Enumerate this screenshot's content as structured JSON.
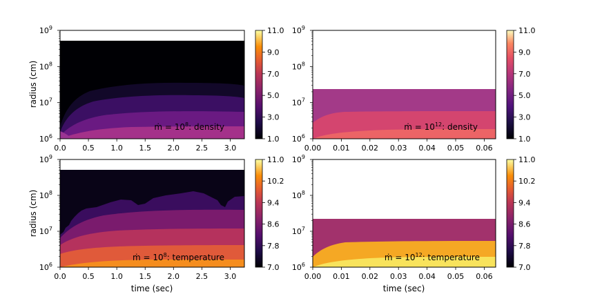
{
  "figure": {
    "xlabel": "time (sec)",
    "ylabel": "radius (cm)"
  },
  "chart_data": [
    {
      "type": "heatmap",
      "label": "ṁ = 10^8: density",
      "label_parts": {
        "pre": "ṁ = 10",
        "exp": "8",
        "post": ": density"
      },
      "xlim": [
        0,
        3.25
      ],
      "x_ticks": [
        "0.0",
        "0.5",
        "1.0",
        "1.5",
        "2.0",
        "2.5",
        "3.0"
      ],
      "x_tick_values": [
        0,
        0.5,
        1.0,
        1.5,
        2.0,
        2.5,
        3.0
      ],
      "ylim": [
        1000000.0,
        1000000000.0
      ],
      "yscale": "log",
      "y_ticks": [
        {
          "base": "10",
          "exp": "6"
        },
        {
          "base": "10",
          "exp": "7"
        },
        {
          "base": "10",
          "exp": "8"
        },
        {
          "base": "10",
          "exp": "9"
        }
      ],
      "y_tick_values": [
        6,
        7,
        8,
        9
      ],
      "colormap": "inferno",
      "colorbar": {
        "vmin": 1.0,
        "vmax": 11.0,
        "ticks": [
          "1.0",
          "3.0",
          "5.0",
          "7.0",
          "9.0",
          "11.0"
        ],
        "tick_values": [
          1,
          3,
          5,
          7,
          9,
          11
        ]
      },
      "grid_outer_radius": 500000000.0
    },
    {
      "type": "heatmap",
      "label": "ṁ = 10^12: density",
      "label_parts": {
        "pre": "ṁ = 10",
        "exp": "12",
        "post": ": density"
      },
      "xlim": [
        0,
        0.064
      ],
      "x_ticks": [
        "0.00",
        "0.01",
        "0.02",
        "0.03",
        "0.04",
        "0.05",
        "0.06"
      ],
      "x_tick_values": [
        0,
        0.01,
        0.02,
        0.03,
        0.04,
        0.05,
        0.06
      ],
      "ylim": [
        1000000.0,
        1000000000.0
      ],
      "yscale": "log",
      "y_ticks": [
        {
          "base": "10",
          "exp": "6"
        },
        {
          "base": "10",
          "exp": "7"
        },
        {
          "base": "10",
          "exp": "8"
        },
        {
          "base": "10",
          "exp": "9"
        }
      ],
      "y_tick_values": [
        6,
        7,
        8,
        9
      ],
      "colormap": "magma",
      "colorbar": {
        "vmin": 1.0,
        "vmax": 11.0,
        "ticks": [
          "1.0",
          "3.0",
          "5.0",
          "7.0",
          "9.0",
          "11.0"
        ],
        "tick_values": [
          1,
          3,
          5,
          7,
          9,
          11
        ]
      },
      "grid_outer_radius": 22000000.0
    },
    {
      "type": "heatmap",
      "label": "ṁ = 10^8: temperature",
      "label_parts": {
        "pre": "ṁ = 10",
        "exp": "8",
        "post": ": temperature"
      },
      "xlim": [
        0,
        3.25
      ],
      "x_ticks": [
        "0.0",
        "0.5",
        "1.0",
        "1.5",
        "2.0",
        "2.5",
        "3.0"
      ],
      "x_tick_values": [
        0,
        0.5,
        1.0,
        1.5,
        2.0,
        2.5,
        3.0
      ],
      "ylim": [
        1000000.0,
        1000000000.0
      ],
      "yscale": "log",
      "y_ticks": [
        {
          "base": "10",
          "exp": "6"
        },
        {
          "base": "10",
          "exp": "7"
        },
        {
          "base": "10",
          "exp": "8"
        },
        {
          "base": "10",
          "exp": "9"
        }
      ],
      "y_tick_values": [
        6,
        7,
        8,
        9
      ],
      "colormap": "inferno",
      "colorbar": {
        "vmin": 7.0,
        "vmax": 11.0,
        "ticks": [
          "7.0",
          "7.8",
          "8.6",
          "9.4",
          "10.2",
          "11.0"
        ],
        "tick_values": [
          7.0,
          7.8,
          8.6,
          9.4,
          10.2,
          11.0
        ]
      },
      "grid_outer_radius": 500000000.0
    },
    {
      "type": "heatmap",
      "label": "ṁ = 10^12: temperature",
      "label_parts": {
        "pre": "ṁ = 10",
        "exp": "12",
        "post": ": temperature"
      },
      "xlim": [
        0,
        0.064
      ],
      "x_ticks": [
        "0.00",
        "0.01",
        "0.02",
        "0.03",
        "0.04",
        "0.05",
        "0.06"
      ],
      "x_tick_values": [
        0,
        0.01,
        0.02,
        0.03,
        0.04,
        0.05,
        0.06
      ],
      "ylim": [
        1000000.0,
        1000000000.0
      ],
      "yscale": "log",
      "y_ticks": [
        {
          "base": "10",
          "exp": "6"
        },
        {
          "base": "10",
          "exp": "7"
        },
        {
          "base": "10",
          "exp": "8"
        },
        {
          "base": "10",
          "exp": "9"
        }
      ],
      "y_tick_values": [
        6,
        7,
        8,
        9
      ],
      "colormap": "inferno",
      "colorbar": {
        "vmin": 7.0,
        "vmax": 11.0,
        "ticks": [
          "7.0",
          "7.8",
          "8.6",
          "9.4",
          "10.2",
          "11.0"
        ],
        "tick_values": [
          7.0,
          7.8,
          8.6,
          9.4,
          10.2,
          11.0
        ]
      },
      "grid_outer_radius": 22000000.0
    }
  ]
}
